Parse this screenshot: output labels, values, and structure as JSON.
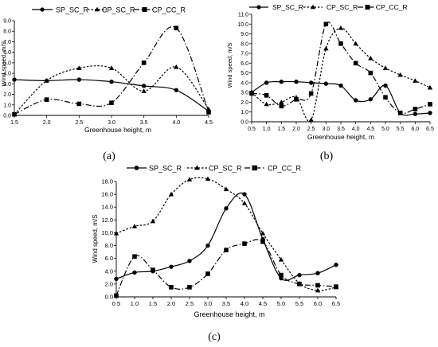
{
  "chart_data": [
    {
      "panel_label": "(a)",
      "type": "line",
      "xlabel": "Greenhouse height, m",
      "ylabel": "Wind speed, m/S",
      "xlim": [
        1.5,
        4.5
      ],
      "ylim": [
        0.0,
        9.0
      ],
      "xticks": [
        "1.5",
        "2.0",
        "2.5",
        "3.0",
        "3.5",
        "4.0",
        "4.5"
      ],
      "yticks": [
        "0.0",
        "1.0",
        "2.0",
        "3.0",
        "4.0",
        "5.0",
        "6.0",
        "7.0",
        "8.0",
        "9.0"
      ],
      "legend_position": "top",
      "series": [
        {
          "name": "SP_SC_R",
          "marker": "circle",
          "dash": "solid",
          "x": [
            1.5,
            2.0,
            2.5,
            3.0,
            3.5,
            4.0,
            4.5
          ],
          "y": [
            3.4,
            3.3,
            3.4,
            3.2,
            2.8,
            2.4,
            0.4
          ]
        },
        {
          "name": "CP_SC_R",
          "marker": "triangle",
          "dash": "short",
          "x": [
            1.5,
            2.0,
            2.5,
            3.0,
            3.5,
            4.0,
            4.5
          ],
          "y": [
            0.1,
            3.3,
            4.5,
            4.5,
            2.3,
            4.6,
            0.6
          ]
        },
        {
          "name": "CP_CC_R",
          "marker": "square",
          "dash": "dashdot",
          "x": [
            1.5,
            2.0,
            2.5,
            3.0,
            3.5,
            4.0,
            4.5
          ],
          "y": [
            0.1,
            1.5,
            1.1,
            1.2,
            5.0,
            8.3,
            0.3
          ]
        }
      ]
    },
    {
      "panel_label": "(b)",
      "type": "line",
      "xlabel": "Greenhouse height, m",
      "ylabel": "Wind speed, m/S",
      "xlim": [
        0.5,
        6.5
      ],
      "ylim": [
        0.0,
        11.0
      ],
      "xticks": [
        "0.5",
        "1.0",
        "1.5",
        "2.0",
        "2.5",
        "3.0",
        "3.5",
        "4.0",
        "4.5",
        "5.0",
        "5.5",
        "6.0",
        "6.5"
      ],
      "yticks": [
        "0.0",
        "1.0",
        "2.0",
        "3.0",
        "4.0",
        "5.0",
        "6.0",
        "7.0",
        "8.0",
        "9.0",
        "10.0",
        "11.0"
      ],
      "legend_position": "top",
      "series": [
        {
          "name": "SP_SC_R",
          "marker": "circle",
          "dash": "solid",
          "x": [
            0.5,
            1.0,
            1.5,
            2.0,
            2.5,
            3.0,
            3.5,
            4.0,
            4.5,
            5.0,
            5.5,
            6.0,
            6.5
          ],
          "y": [
            3.0,
            4.0,
            4.1,
            4.1,
            4.0,
            3.9,
            3.7,
            2.2,
            2.3,
            3.7,
            0.9,
            0.8,
            0.9
          ]
        },
        {
          "name": "CP_SC_R",
          "marker": "triangle",
          "dash": "short",
          "x": [
            0.5,
            1.0,
            1.5,
            2.0,
            2.5,
            3.0,
            3.5,
            4.0,
            4.5,
            5.0,
            5.5,
            6.0,
            6.5
          ],
          "y": [
            3.0,
            1.8,
            2.0,
            2.5,
            0.2,
            7.5,
            9.6,
            8.0,
            6.5,
            5.5,
            4.8,
            4.2,
            3.5
          ]
        },
        {
          "name": "CP_CC_R",
          "marker": "square",
          "dash": "dashdot",
          "x": [
            0.5,
            1.0,
            1.5,
            2.0,
            2.5,
            3.0,
            3.5,
            4.0,
            4.5,
            5.0,
            5.5,
            6.0,
            6.5
          ],
          "y": [
            2.9,
            2.7,
            1.6,
            2.3,
            2.9,
            10.0,
            8.0,
            6.0,
            5.0,
            2.5,
            0.9,
            1.3,
            1.8
          ]
        }
      ]
    },
    {
      "panel_label": "(c)",
      "type": "line",
      "xlabel": "Greenhouse height, m",
      "ylabel": "Wind speed, m/S",
      "xlim": [
        0.5,
        6.5
      ],
      "ylim": [
        0.0,
        18.0
      ],
      "xticks": [
        "0.5",
        "1.0",
        "1.5",
        "2.0",
        "2.5",
        "3.0",
        "3.5",
        "4.0",
        "4.5",
        "5.0",
        "5.5",
        "6.0",
        "6.5"
      ],
      "yticks": [
        "0.0",
        "2.0",
        "4.0",
        "6.0",
        "8.0",
        "10.0",
        "12.0",
        "14.0",
        "16.0",
        "18.0"
      ],
      "legend_position": "top",
      "series": [
        {
          "name": "SP_SC_R",
          "marker": "circle",
          "dash": "solid",
          "x": [
            0.5,
            1.0,
            1.5,
            2.0,
            2.5,
            3.0,
            3.5,
            4.0,
            4.5,
            5.0,
            5.5,
            6.0,
            6.5
          ],
          "y": [
            2.8,
            3.8,
            4.0,
            4.7,
            5.6,
            8.0,
            13.8,
            16.0,
            9.0,
            2.9,
            3.4,
            3.7,
            5.0
          ]
        },
        {
          "name": "CP_SC_R",
          "marker": "triangle",
          "dash": "short",
          "x": [
            0.5,
            1.0,
            1.5,
            2.0,
            2.5,
            3.0,
            3.5,
            4.0,
            4.5,
            5.0,
            5.5,
            6.0,
            6.5
          ],
          "y": [
            9.9,
            11.0,
            11.8,
            16.0,
            18.3,
            18.4,
            16.8,
            14.6,
            9.9,
            5.8,
            2.1,
            1.0,
            1.5
          ]
        },
        {
          "name": "CP_CC_R",
          "marker": "square",
          "dash": "dashdot",
          "x": [
            0.5,
            1.0,
            1.5,
            2.0,
            2.5,
            3.0,
            3.5,
            4.0,
            4.5,
            5.0,
            5.5,
            6.0,
            6.5
          ],
          "y": [
            0.2,
            6.3,
            4.2,
            1.5,
            1.5,
            3.6,
            7.3,
            8.3,
            8.6,
            3.4,
            2.0,
            1.8,
            1.6
          ]
        }
      ]
    }
  ]
}
